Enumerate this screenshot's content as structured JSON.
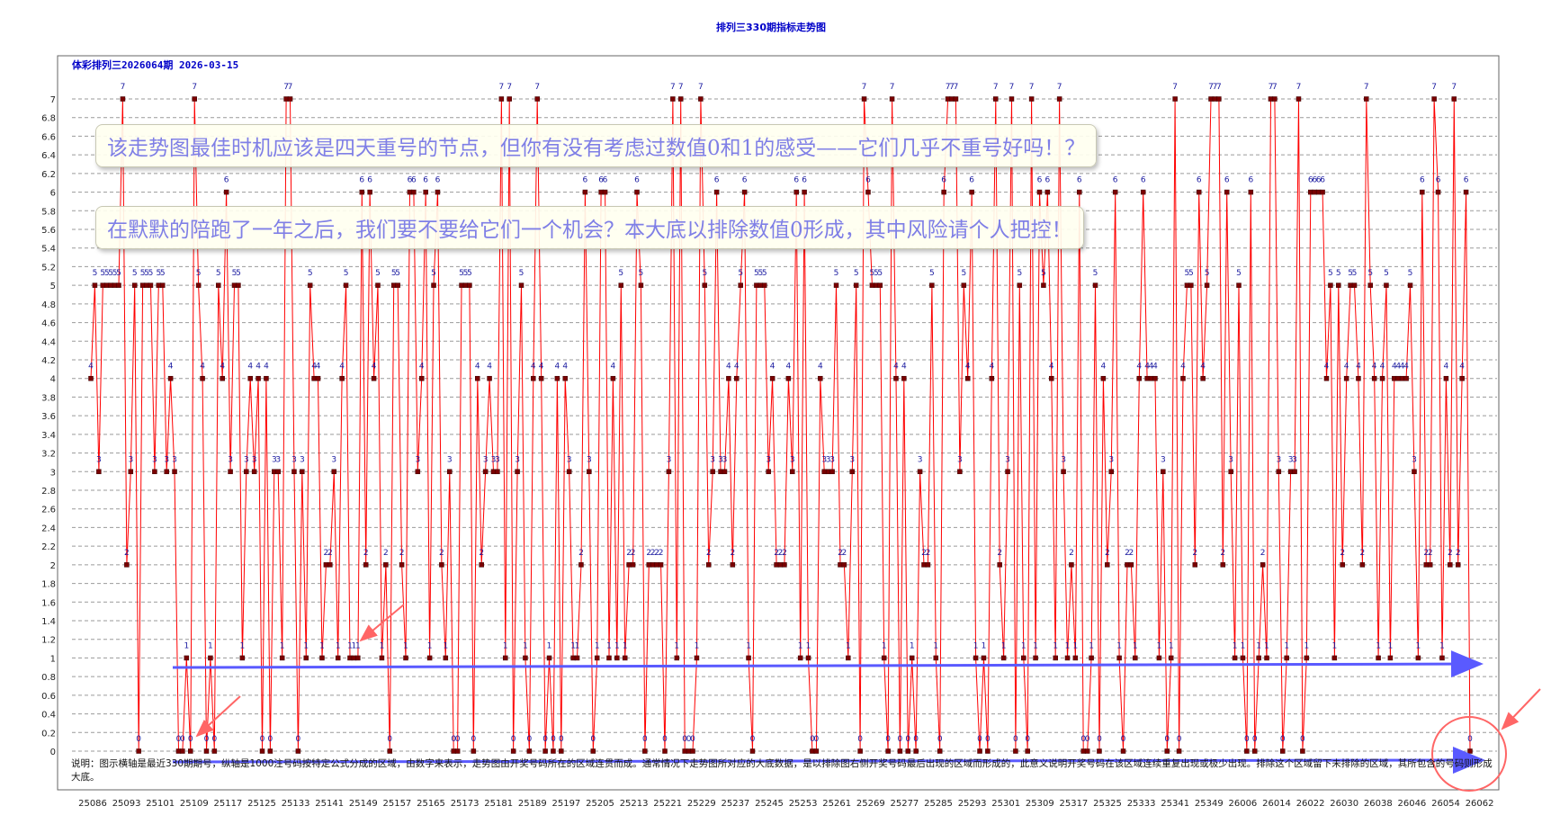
{
  "title": "排列三330期指标走势图",
  "subtitle": "体彩排列三2026064期  2026-03-15",
  "notes": [
    "该走势图最佳时机应该是四天重号的节点，但你有没有考虑过数值0和1的感受——它们几乎不重号好吗！？",
    "在默默的陪跑了一年之后，我们要不要给它们一个机会？本大底以排除数值0形成，其中风险请个人把控！"
  ],
  "description": "说明：图示横轴是最近330期期号，纵轴是1000注号码按特定公式分成的区域，由数字来表示，走势图由开奖号码所在的区域连贯而成。通常情况下走势图所对应的大底数据，是以排除图右侧开奖号码最后出现的区域而形成的，此意义说明开奖号码在该区域连续重复出现或极少出现。排除这个区域留下未排除的区域，其所包含的号码则形成大底。",
  "colors": {
    "line": "#ff0000",
    "marker": "#7a0000",
    "label": "#1a1aa0",
    "arrow": "#5a5aff",
    "circle": "#ff6666",
    "title": "#0000c8"
  },
  "chart_data": {
    "type": "line",
    "title": "排列三330期指标走势图",
    "ylim": [
      0,
      7
    ],
    "yticks": [
      "0",
      "0.2",
      "0.4",
      "0.6",
      "0.8",
      "1",
      "1.2",
      "1.4",
      "1.6",
      "1.8",
      "2",
      "2.2",
      "2.4",
      "2.6",
      "2.8",
      "3",
      "3.2",
      "3.4",
      "3.6",
      "3.8",
      "4",
      "4.2",
      "4.4",
      "4.6",
      "4.8",
      "5",
      "5.2",
      "5.4",
      "5.6",
      "5.8",
      "6",
      "6.2",
      "6.4",
      "6.6",
      "6.8",
      "7"
    ],
    "xticks": [
      "25086",
      "25093",
      "25101",
      "25109",
      "25117",
      "25125",
      "25133",
      "25141",
      "25149",
      "25157",
      "25165",
      "25173",
      "25181",
      "25189",
      "25197",
      "25205",
      "25213",
      "25221",
      "25229",
      "25237",
      "25245",
      "25253",
      "25261",
      "25269",
      "25277",
      "25285",
      "25293",
      "25301",
      "25309",
      "25317",
      "25325",
      "25333",
      "25341",
      "25349",
      "26006",
      "26014",
      "26022",
      "26030",
      "26038",
      "26046",
      "26054",
      "26062"
    ],
    "grid": true,
    "series": [
      {
        "values": [
          4,
          5,
          3,
          5,
          5,
          5,
          5,
          5,
          7,
          2,
          3,
          5,
          0,
          5,
          5,
          5,
          3,
          5,
          5,
          3,
          4,
          3,
          0,
          0,
          1,
          0,
          7,
          5,
          4,
          0,
          1,
          0,
          5,
          4,
          6,
          3,
          5,
          5,
          1,
          3,
          4,
          3,
          4,
          0,
          4,
          0,
          3,
          3,
          1,
          7,
          7,
          3,
          0,
          3,
          1,
          5,
          4,
          4,
          1,
          2,
          2,
          3,
          1,
          4,
          5,
          1,
          1,
          1,
          6,
          2,
          6,
          4,
          5,
          1,
          2,
          0,
          5,
          5,
          2,
          1,
          6,
          6,
          3,
          4,
          6,
          1,
          5,
          6,
          2,
          1,
          3,
          0,
          0,
          5,
          5,
          5,
          0,
          4,
          2,
          3,
          4,
          3,
          3,
          7,
          1,
          7,
          0,
          3,
          5,
          1,
          0,
          4,
          7,
          4,
          0,
          1,
          0,
          4,
          0,
          4,
          3,
          1,
          1,
          2,
          6,
          3,
          0,
          1,
          6,
          6,
          1,
          4,
          1,
          5,
          1,
          2,
          2,
          6,
          5,
          0,
          2,
          2,
          2,
          2,
          0,
          3,
          7,
          1,
          7,
          0,
          0,
          0,
          1,
          7,
          5,
          2,
          3,
          6,
          3,
          3,
          4,
          2,
          4,
          5,
          6,
          1,
          0,
          5,
          5,
          5,
          3,
          4,
          2,
          2,
          2,
          4,
          3,
          6,
          1,
          6,
          1,
          0,
          0,
          4,
          3,
          3,
          3,
          5,
          2,
          2,
          1,
          3,
          5,
          0,
          7,
          6,
          5,
          5,
          5,
          1,
          0,
          7,
          4,
          0,
          4,
          0,
          1,
          0,
          3,
          2,
          2,
          5,
          1,
          0,
          6,
          7,
          7,
          7,
          3,
          5,
          4,
          6,
          1,
          0,
          1,
          0,
          4,
          7,
          2,
          1,
          3,
          7,
          0,
          5,
          1,
          0,
          7,
          1,
          6,
          5,
          6,
          4,
          1,
          7,
          3,
          1,
          2,
          1,
          6,
          0,
          0,
          1,
          5,
          0,
          4,
          2,
          3,
          6,
          1,
          0,
          2,
          2,
          1,
          4,
          6,
          4,
          4,
          4,
          1,
          3,
          0,
          1,
          7,
          0,
          4,
          5,
          5,
          2,
          6,
          4,
          5,
          7,
          7,
          7,
          2,
          6,
          3,
          1,
          5,
          1,
          0,
          6,
          0,
          1,
          2,
          1,
          7,
          7,
          3,
          0,
          1,
          3,
          3,
          7,
          0,
          1,
          6,
          6,
          6,
          6,
          4,
          5,
          1,
          5,
          2,
          4,
          5,
          5,
          4,
          2,
          7,
          5,
          4,
          1,
          4,
          5,
          1,
          4,
          4,
          4,
          4,
          5,
          3,
          1,
          6,
          2,
          2,
          7,
          6,
          1,
          4,
          2,
          7,
          2,
          4,
          6,
          0
        ],
        "labels": [
          "4",
          "5",
          "3",
          "5",
          "5",
          "5",
          "5",
          "5",
          "7",
          "2",
          "3",
          "5",
          "0",
          "5",
          "5",
          "5",
          "3",
          "5",
          "5",
          "3",
          "4",
          "3",
          "0",
          "0",
          "1",
          "0",
          "7",
          "5",
          "4",
          "0",
          "1",
          "0",
          "5",
          "4",
          "6",
          "3",
          "5",
          "5",
          "1",
          "3",
          "4",
          "3",
          "4",
          "0",
          "4",
          "0",
          "3",
          "3",
          "1",
          "7",
          "7",
          "3",
          "0",
          "3",
          "1",
          "5",
          "4",
          "4",
          "1",
          "2",
          "2",
          "3",
          "1",
          "4",
          "5",
          "1",
          "1",
          "1",
          "6",
          "2",
          "6",
          "4",
          "5",
          "1",
          "2",
          "0",
          "5",
          "5",
          "2",
          "1",
          "6",
          "6",
          "3",
          "4",
          "6",
          "1",
          "5",
          "6",
          "2",
          "1",
          "3",
          "0",
          "0",
          "5",
          "5",
          "5",
          "0",
          "4",
          "2",
          "3",
          "4",
          "3",
          "3",
          "7",
          "1",
          "7",
          "0",
          "3",
          "5",
          "1",
          "0",
          "4",
          "7",
          "4",
          "0",
          "1",
          "0",
          "4",
          "0",
          "4",
          "3",
          "1",
          "1",
          "2",
          "6",
          "3",
          "0",
          "1",
          "6",
          "6",
          "1",
          "4",
          "1",
          "5",
          "1",
          "2",
          "2",
          "6",
          "5",
          "0",
          "2",
          "2",
          "2",
          "2",
          "0",
          "3",
          "7",
          "1",
          "7",
          "0",
          "0",
          "0",
          "1",
          "7",
          "5",
          "2",
          "3",
          "6",
          "3",
          "3",
          "4",
          "2",
          "4",
          "5",
          "6",
          "1",
          "0",
          "5",
          "5",
          "5",
          "3",
          "4",
          "2",
          "2",
          "2",
          "4",
          "3",
          "6",
          "1",
          "6",
          "1",
          "0",
          "0",
          "4",
          "3",
          "3",
          "3",
          "5",
          "2",
          "2",
          "1",
          "3",
          "5",
          "0",
          "7",
          "6",
          "5",
          "5",
          "5",
          "1",
          "0",
          "7",
          "4",
          "0",
          "4",
          "0",
          "1",
          "0",
          "3",
          "2",
          "2",
          "5",
          "1",
          "0",
          "6",
          "7",
          "7",
          "7",
          "3",
          "5",
          "4",
          "6",
          "1",
          "0",
          "1",
          "0",
          "4",
          "7",
          "2",
          "1",
          "3",
          "7",
          "0",
          "5",
          "1",
          "0",
          "7",
          "1",
          "6",
          "5",
          "6",
          "4",
          "1",
          "7",
          "3",
          "1",
          "2",
          "1",
          "6",
          "0",
          "0",
          "1",
          "5",
          "0",
          "4",
          "2",
          "3",
          "6",
          "1",
          "0",
          "2",
          "2",
          "1",
          "4",
          "6",
          "4",
          "4",
          "4",
          "1",
          "3",
          "0",
          "1",
          "7",
          "0",
          "4",
          "5",
          "5",
          "2",
          "6",
          "4",
          "5",
          "7",
          "7",
          "7",
          "2",
          "6",
          "3",
          "1",
          "5",
          "1",
          "0",
          "6",
          "0",
          "1",
          "2",
          "1",
          "7",
          "7",
          "3",
          "0",
          "1",
          "3",
          "3",
          "7",
          "0",
          "1",
          "6",
          "6",
          "6",
          "6",
          "4",
          "5",
          "1",
          "5",
          "2",
          "4",
          "5",
          "5",
          "4",
          "2",
          "7",
          "5",
          "4",
          "1",
          "4",
          "5",
          "1",
          "4",
          "4",
          "4",
          "4",
          "5",
          "3",
          "1",
          "6",
          "2",
          "2",
          "7",
          "6",
          "1",
          "4",
          "2",
          "7",
          "2",
          "4",
          "6",
          "0"
        ]
      }
    ]
  }
}
